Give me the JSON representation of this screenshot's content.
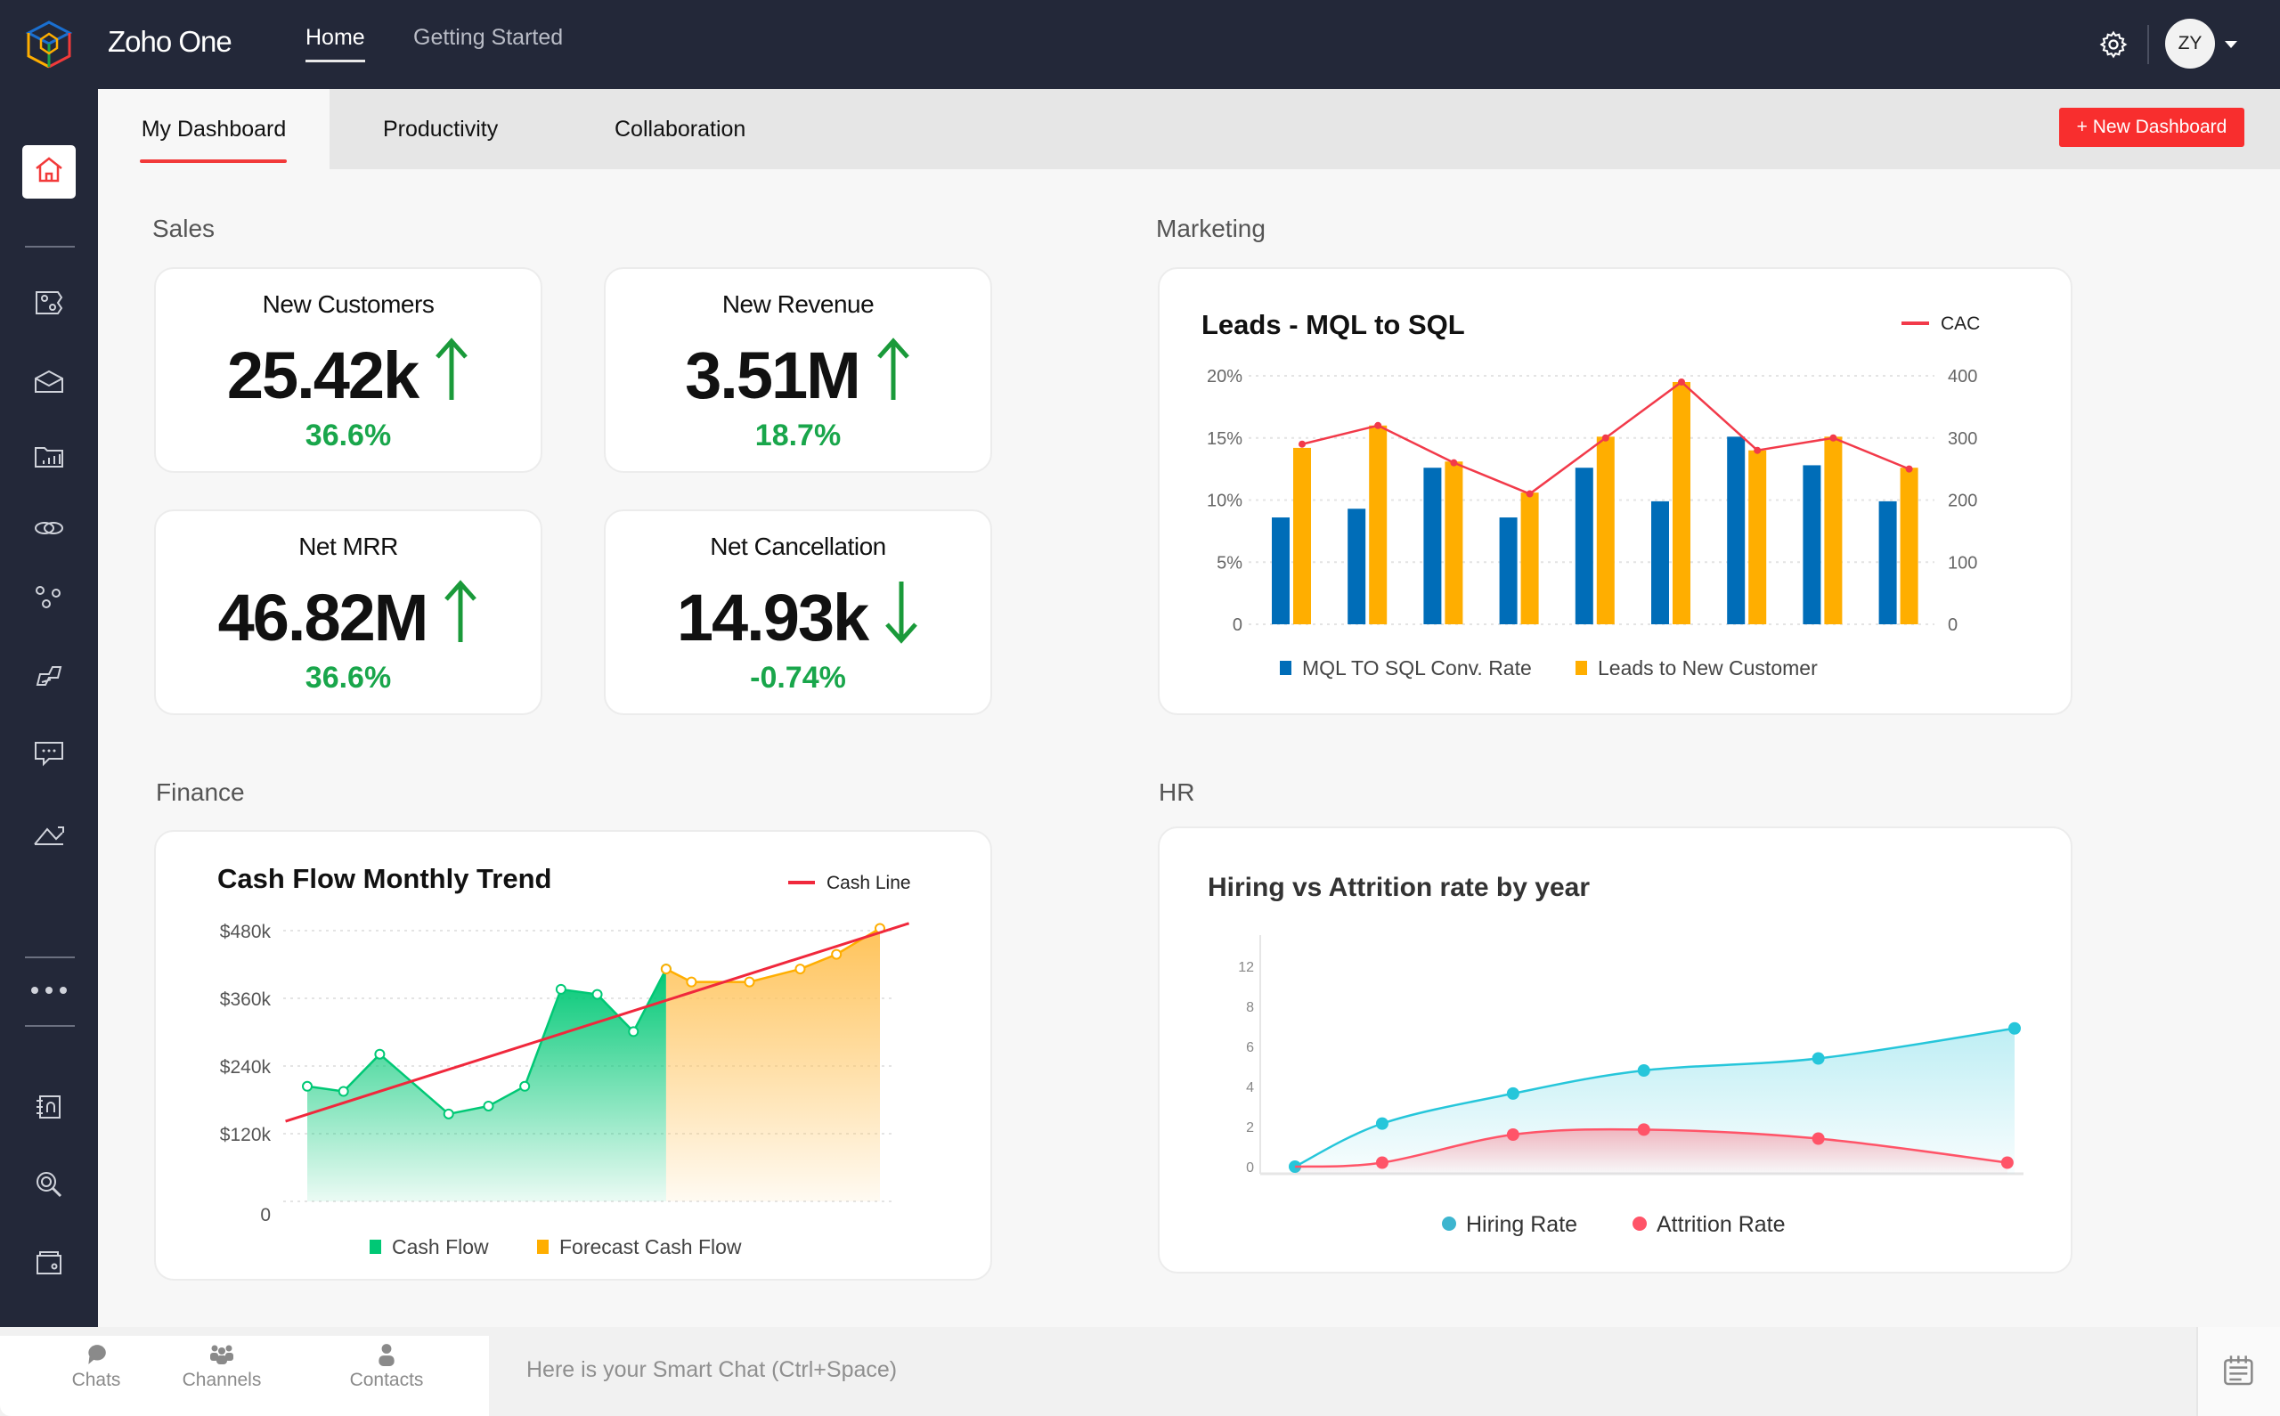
{
  "app": {
    "title": "Zoho One",
    "nav": [
      {
        "label": "Home",
        "active": true
      },
      {
        "label": "Getting Started",
        "active": false
      }
    ],
    "avatar": "ZY"
  },
  "tabs": [
    {
      "label": "My Dashboard",
      "active": true
    },
    {
      "label": "Productivity"
    },
    {
      "label": "Collaboration"
    }
  ],
  "new_dashboard_label": "+ New Dashboard",
  "sections": {
    "sales": "Sales",
    "marketing": "Marketing",
    "finance": "Finance",
    "hr": "HR"
  },
  "kpis": [
    {
      "title": "New Customers",
      "value": "25.42k",
      "change": "36.6%",
      "trend": "up"
    },
    {
      "title": "New Revenue",
      "value": "3.51M",
      "change": "18.7%",
      "trend": "up"
    },
    {
      "title": "Net MRR",
      "value": "46.82M",
      "change": "36.6%",
      "trend": "up"
    },
    {
      "title": "Net Cancellation",
      "value": "14.93k",
      "change": "-0.74%",
      "trend": "down"
    }
  ],
  "sidebar": {
    "icons": [
      "home-icon",
      "crm-icon",
      "mail-icon",
      "workdrive-icon",
      "cliq-icon",
      "flow-icon",
      "sign-icon",
      "desk-chat-icon",
      "analytics-icon",
      "more-icon",
      "notebook-icon",
      "search-icon",
      "wallet-icon"
    ]
  },
  "bottom": {
    "items": [
      "Chats",
      "Channels",
      "Contacts"
    ],
    "smart_chat": "Here is your Smart Chat (Ctrl+Space)"
  },
  "colors": {
    "accent": "#f82e2e",
    "green": "#19a64b",
    "blue": "#006db8",
    "orange": "#ffae00",
    "red": "#f23a4a",
    "teal": "#26c6da"
  },
  "chart_data": [
    {
      "type": "bar",
      "title": "Leads - MQL to SQL",
      "left_axis": {
        "ticks": [
          "0",
          "5%",
          "10%",
          "15%",
          "20%"
        ],
        "ylim": [
          0,
          20
        ]
      },
      "right_axis": {
        "ticks": [
          "0",
          "100",
          "200",
          "300",
          "400"
        ],
        "ylim": [
          0,
          400
        ]
      },
      "grid": true,
      "legend": "bottom",
      "series": [
        {
          "name": "MQL TO SQL Conv. Rate",
          "axis": "left",
          "color": "#006db8",
          "values": [
            8.6,
            9.3,
            12.6,
            8.6,
            12.6,
            9.9,
            15.1,
            12.8,
            9.9
          ]
        },
        {
          "name": "Leads to New Customer",
          "axis": "left",
          "color": "#ffae00",
          "values": [
            14.2,
            16.0,
            13.1,
            10.6,
            15.1,
            19.5,
            14.0,
            15.1,
            12.6
          ]
        },
        {
          "name": "CAC",
          "type": "line",
          "axis": "right",
          "color": "#f23a4a",
          "values": [
            290,
            320,
            260,
            210,
            300,
            390,
            280,
            300,
            250
          ]
        }
      ]
    },
    {
      "type": "area",
      "title": "Cash Flow Monthly Trend",
      "y_ticks": [
        "0",
        "$120k",
        "$240k",
        "$360k",
        "$480k"
      ],
      "ylim": [
        0,
        480000
      ],
      "grid": true,
      "legend": "bottom",
      "series": [
        {
          "name": "Cash Flow",
          "color": "#00c875",
          "x": [
            0,
            1,
            2,
            3.9,
            5,
            6,
            7,
            8,
            9,
            9.9
          ],
          "values": [
            204000,
            195000,
            261000,
            155000,
            169000,
            204000,
            376000,
            367000,
            301000,
            412000
          ]
        },
        {
          "name": "Forecast Cash Flow",
          "color": "#ffae00",
          "x": [
            9.9,
            10.6,
            12.2,
            13.6,
            14.6,
            15.8
          ],
          "values": [
            412000,
            389000,
            389000,
            412000,
            438000,
            484000
          ]
        },
        {
          "name": "Cash Line",
          "type": "line",
          "color": "#f0283c",
          "x": [
            -0.6,
            16.6
          ],
          "values": [
            142000,
            493000
          ]
        }
      ]
    },
    {
      "type": "area",
      "title": "Hiring vs Attrition rate by year",
      "y_ticks": [
        "0",
        "2",
        "4",
        "6",
        "8",
        "12"
      ],
      "grid": false,
      "legend": "bottom",
      "series": [
        {
          "name": "Hiring Rate",
          "color": "#26c6da",
          "x": [
            0,
            0.6,
            1.5,
            2.4,
            3.6,
            4.95
          ],
          "values": [
            0,
            2.15,
            3.65,
            4.8,
            5.4,
            6.9
          ]
        },
        {
          "name": "Attrition Rate",
          "color": "#ff5468",
          "x": [
            0,
            0.6,
            1.5,
            2.4,
            3.6,
            4.9
          ],
          "values": [
            0,
            0.2,
            1.6,
            1.85,
            1.4,
            0.2
          ]
        }
      ]
    }
  ]
}
